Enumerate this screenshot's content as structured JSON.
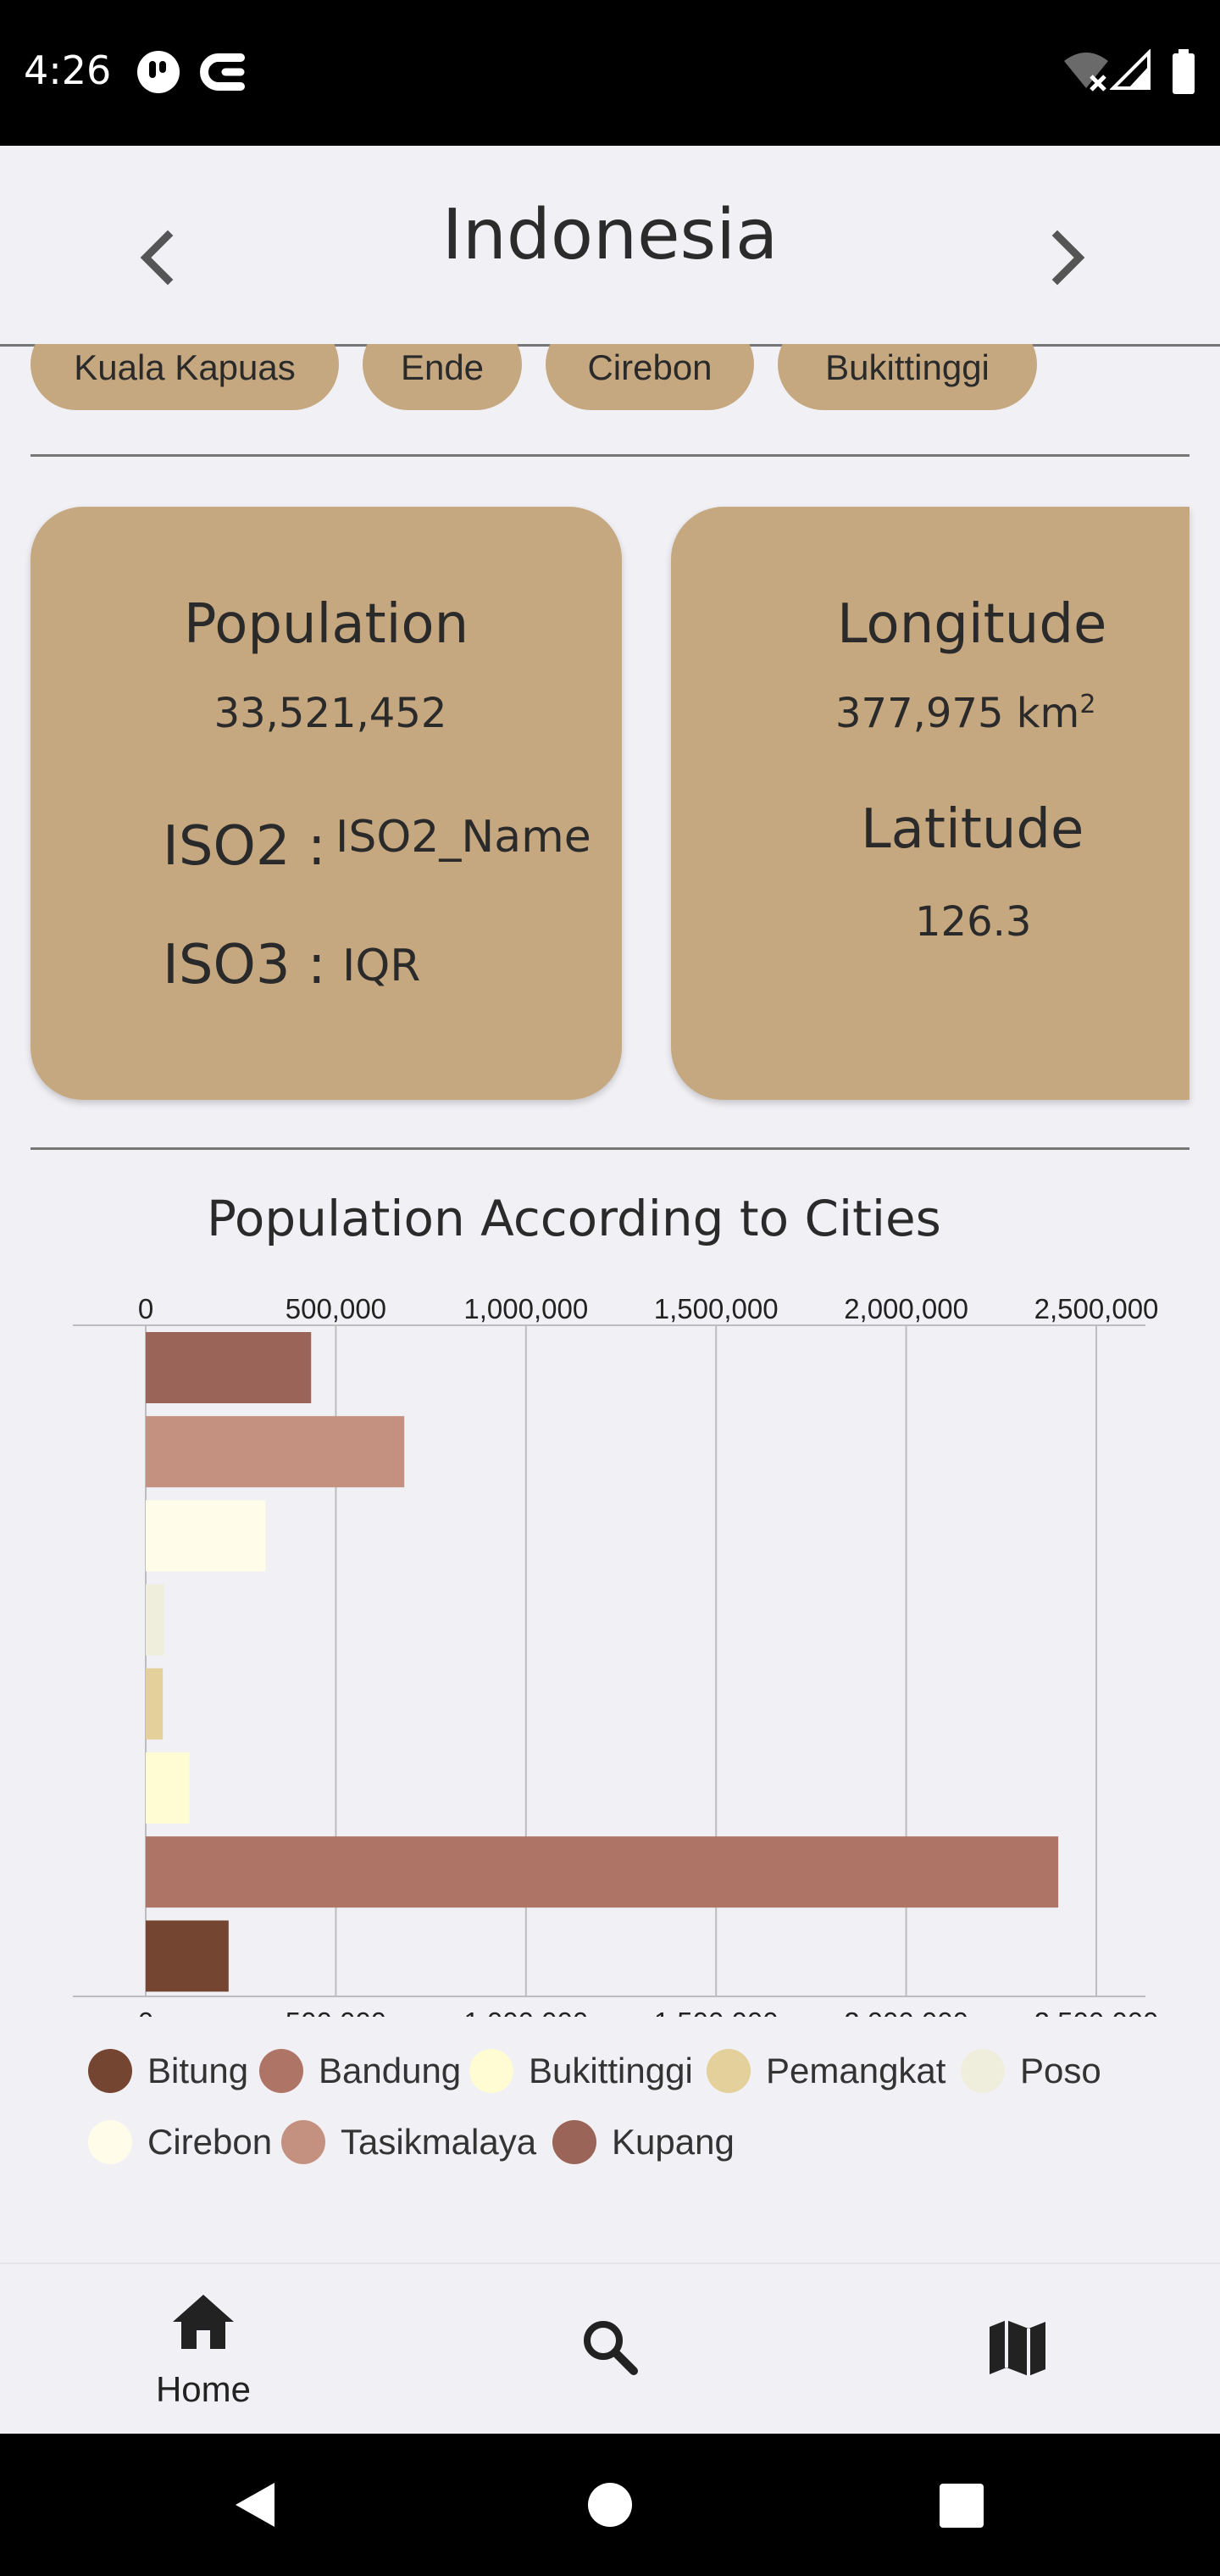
{
  "status_bar": {
    "time": "4:26"
  },
  "header": {
    "title": "Indonesia"
  },
  "chips": [
    {
      "label": "Kuala Kapuas"
    },
    {
      "label": "Ende"
    },
    {
      "label": "Cirebon"
    },
    {
      "label": "Bukittinggi"
    }
  ],
  "info_card": {
    "population_label": "Population",
    "population_value": "33,521,452",
    "iso2_label": "ISO2 :",
    "iso2_value": "ISO2_Name",
    "iso3_label": "ISO3 :",
    "iso3_value": "IQR"
  },
  "geo_card": {
    "longitude_label": "Longitude",
    "longitude_value": "377,975 km",
    "longitude_unit_sup": "2",
    "latitude_label": "Latitude",
    "latitude_value": "126.3"
  },
  "chart_title": "Population According to Cities",
  "chart_data": {
    "type": "bar",
    "orientation": "horizontal",
    "title": "Population According to Cities",
    "xlim": [
      0,
      2600000
    ],
    "ticks": [
      0,
      500000,
      1000000,
      1500000,
      2000000,
      2500000
    ],
    "tick_labels": [
      "0",
      "500,000",
      "1,000,000",
      "1,500,000",
      "2,000,000",
      "2,500,000"
    ],
    "grid": true,
    "legend_position": "bottom",
    "categories": [
      "Kupang",
      "Tasikmalaya",
      "Cirebon",
      "Poso",
      "Pemangkat",
      "Bukittinggi",
      "Bandung",
      "Bitung"
    ],
    "values": [
      435000,
      680000,
      315000,
      48000,
      45000,
      115000,
      2400000,
      218000
    ],
    "colors": [
      "#9b6459",
      "#c49080",
      "#fffdea",
      "#efeedd",
      "#e3d09a",
      "#fffcd3",
      "#ae7466",
      "#744632"
    ]
  },
  "legend": [
    {
      "label": "Bitung",
      "color": "#744632"
    },
    {
      "label": "Bandung",
      "color": "#ae7466"
    },
    {
      "label": "Bukittinggi",
      "color": "#fffcd3"
    },
    {
      "label": "Pemangkat",
      "color": "#e3d09a"
    },
    {
      "label": "Poso",
      "color": "#efeedd"
    },
    {
      "label": "Cirebon",
      "color": "#fffdea"
    },
    {
      "label": "Tasikmalaya",
      "color": "#c49080"
    },
    {
      "label": "Kupang",
      "color": "#9b6459"
    }
  ],
  "bottom_nav": {
    "home_label": "Home"
  }
}
